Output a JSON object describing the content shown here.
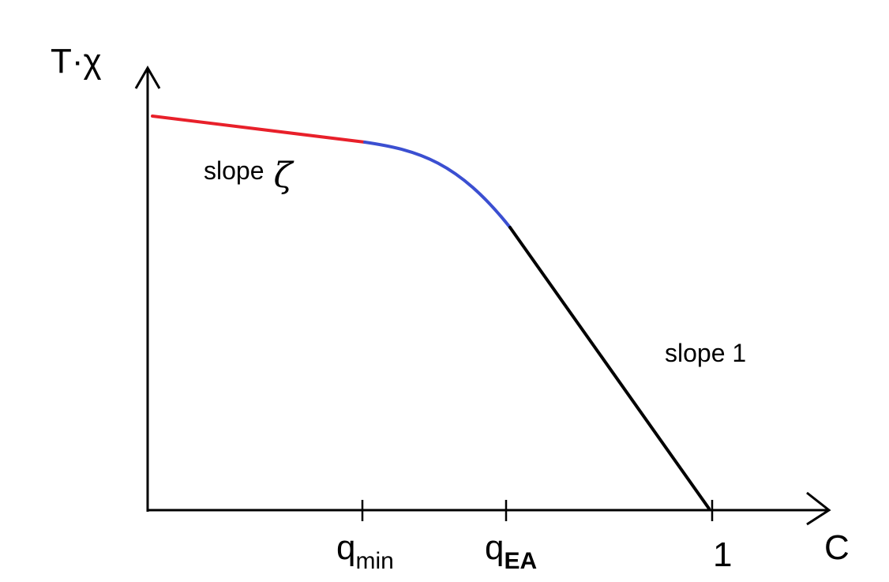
{
  "axes": {
    "y_label": "T·χ",
    "x_label": "C"
  },
  "ticks": [
    {
      "base": "q",
      "sub": "min",
      "sub_bold": false
    },
    {
      "base": "q",
      "sub": "EA",
      "sub_bold": true
    },
    {
      "base": "1",
      "sub": "",
      "sub_bold": false
    }
  ],
  "annotations": {
    "left_slope_text": "slope",
    "left_slope_symbol": "ζ",
    "right_slope_text": "slope 1"
  },
  "colors": {
    "axis": "#000000",
    "left_segment": "#e8202a",
    "middle_segment": "#3b4fd1",
    "right_segment": "#000000"
  }
}
